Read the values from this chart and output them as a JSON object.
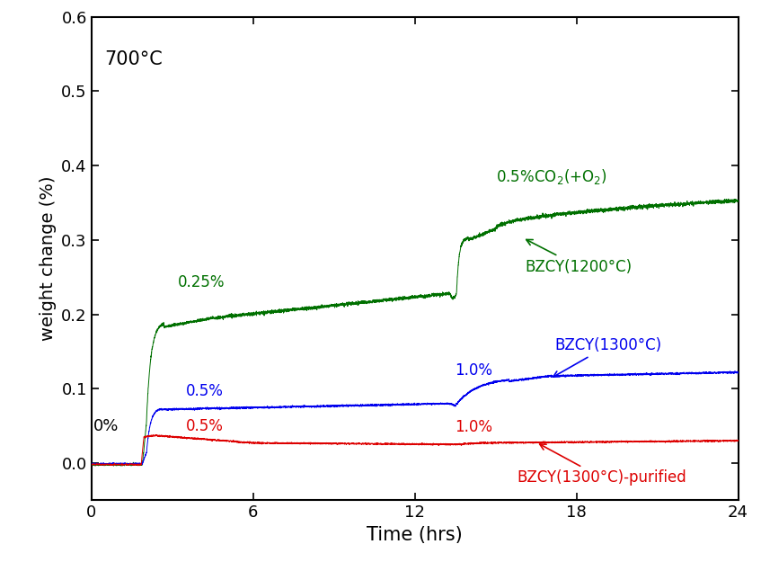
{
  "title": "700°C",
  "xlabel": "Time (hrs)",
  "ylabel": "weight change (%)",
  "xlim": [
    0,
    24
  ],
  "ylim": [
    -0.05,
    0.6
  ],
  "yticks": [
    0.0,
    0.1,
    0.2,
    0.3,
    0.4,
    0.5,
    0.6
  ],
  "xticks": [
    0,
    6,
    12,
    18,
    24
  ],
  "colors": {
    "green": "#007000",
    "blue": "#0000EE",
    "red": "#DD0000"
  },
  "bg_color": "#ffffff",
  "linewidth": 0.7
}
